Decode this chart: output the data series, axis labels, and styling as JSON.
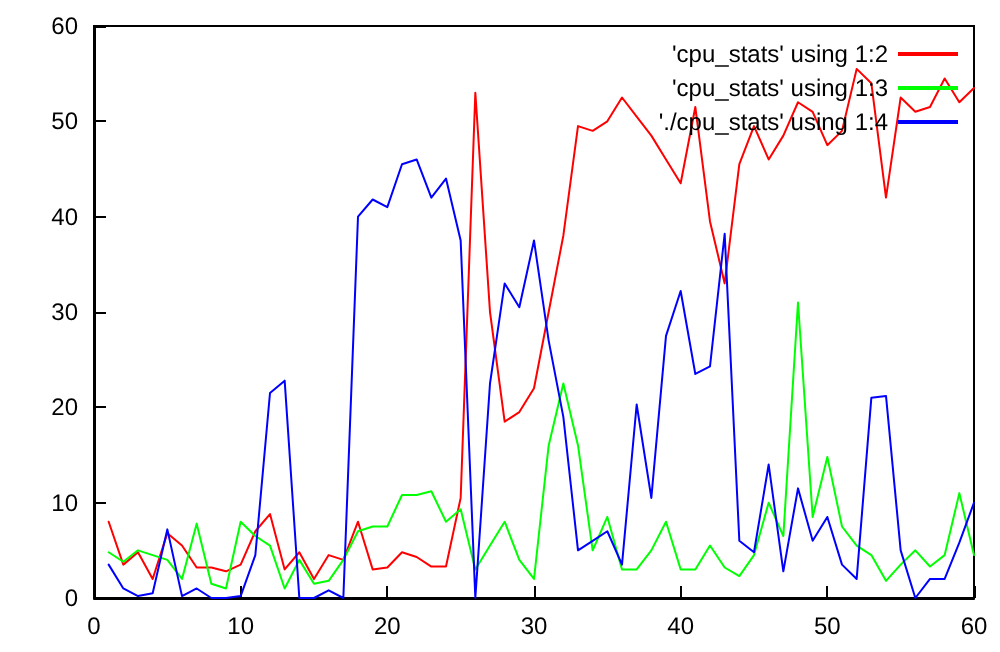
{
  "chart_data": {
    "type": "line",
    "x": [
      1,
      2,
      3,
      4,
      5,
      6,
      7,
      8,
      9,
      10,
      11,
      12,
      13,
      14,
      15,
      16,
      17,
      18,
      19,
      20,
      21,
      22,
      23,
      24,
      25,
      26,
      27,
      28,
      29,
      30,
      31,
      32,
      33,
      34,
      35,
      36,
      37,
      38,
      39,
      40,
      41,
      42,
      43,
      44,
      45,
      46,
      47,
      48,
      49,
      50,
      51,
      52,
      53,
      54,
      55,
      56,
      57,
      58,
      59,
      60
    ],
    "series": [
      {
        "name": "'cpu_stats' using 1:2",
        "color": "#ff0000",
        "values": [
          8,
          3.5,
          4.8,
          2,
          6.8,
          5.5,
          3.2,
          3.2,
          2.8,
          3.5,
          7,
          8.8,
          3,
          4.8,
          2,
          4.5,
          4,
          8,
          3,
          3.2,
          4.8,
          4.3,
          3.3,
          3.3,
          10.5,
          53,
          30,
          18.5,
          19.5,
          22,
          30,
          38,
          49.5,
          49,
          50,
          52.5,
          50.5,
          48.5,
          46,
          43.5,
          51.5,
          39.5,
          33,
          45.5,
          49.5,
          46,
          48.5,
          52,
          51,
          47.5,
          49,
          55.5,
          54,
          42,
          52.5,
          51,
          51.5,
          54.5,
          52,
          53.5
        ]
      },
      {
        "name": "'cpu_stats' using 1:3",
        "color": "#00ff00",
        "values": [
          4.8,
          3.8,
          5,
          4.5,
          4,
          2,
          7.8,
          1.5,
          1,
          8,
          6.5,
          5.5,
          1,
          4,
          1.5,
          1.8,
          4,
          7,
          7.5,
          7.5,
          10.8,
          10.8,
          11.2,
          8,
          9.3,
          3,
          5.5,
          8,
          4,
          2,
          16,
          22.5,
          16,
          5,
          8.5,
          3,
          3,
          5,
          8,
          3,
          3,
          5.5,
          3.2,
          2.3,
          4.5,
          10,
          6.5,
          31,
          8.5,
          14.8,
          7.5,
          5.5,
          4.5,
          1.8,
          3.5,
          5,
          3.3,
          4.5,
          11,
          4.5
        ]
      },
      {
        "name": "'./cpu_stats' using 1:4",
        "color": "#0000ff",
        "values": [
          3.5,
          1,
          0.2,
          0.5,
          7.2,
          0.2,
          1,
          0,
          0,
          0.2,
          4.5,
          21.5,
          22.8,
          0,
          0,
          0.8,
          0,
          40,
          41.8,
          41,
          45.5,
          46,
          42,
          44,
          37.5,
          0,
          22.5,
          33,
          30.5,
          37.5,
          27,
          19,
          5,
          6,
          7,
          3.5,
          20.3,
          10.5,
          27.5,
          32.2,
          23.5,
          24.3,
          38.2,
          6,
          4.8,
          14,
          2.8,
          11.5,
          6,
          8.5,
          3.5,
          2,
          21,
          21.2,
          5,
          0,
          2,
          2,
          5.8,
          10
        ]
      }
    ],
    "xlim": [
      0,
      60
    ],
    "xticks": [
      0,
      10,
      20,
      30,
      40,
      50,
      60
    ],
    "ylim": [
      0,
      60
    ],
    "yticks": [
      0,
      10,
      20,
      30,
      40,
      50,
      60
    ],
    "grid": false,
    "legend": "top right",
    "marker": "none",
    "line_style": "solid"
  }
}
